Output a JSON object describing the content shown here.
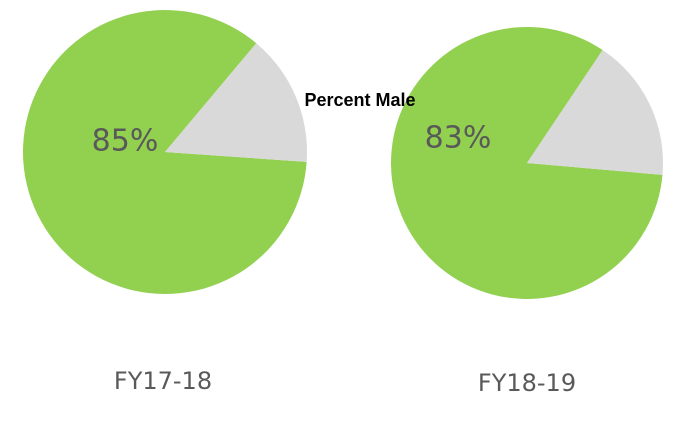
{
  "chart_data": [
    {
      "type": "pie",
      "title": "Percent Male",
      "label": "FY17-18",
      "values": [
        85,
        15
      ],
      "value_labels": [
        "85%",
        null
      ],
      "colors": [
        "#92d050",
        "#d9d9d9"
      ]
    },
    {
      "type": "pie",
      "label": "FY18-19",
      "values": [
        83,
        17
      ],
      "value_labels": [
        "83%",
        null
      ],
      "colors": [
        "#92d050",
        "#d9d9d9"
      ]
    }
  ]
}
